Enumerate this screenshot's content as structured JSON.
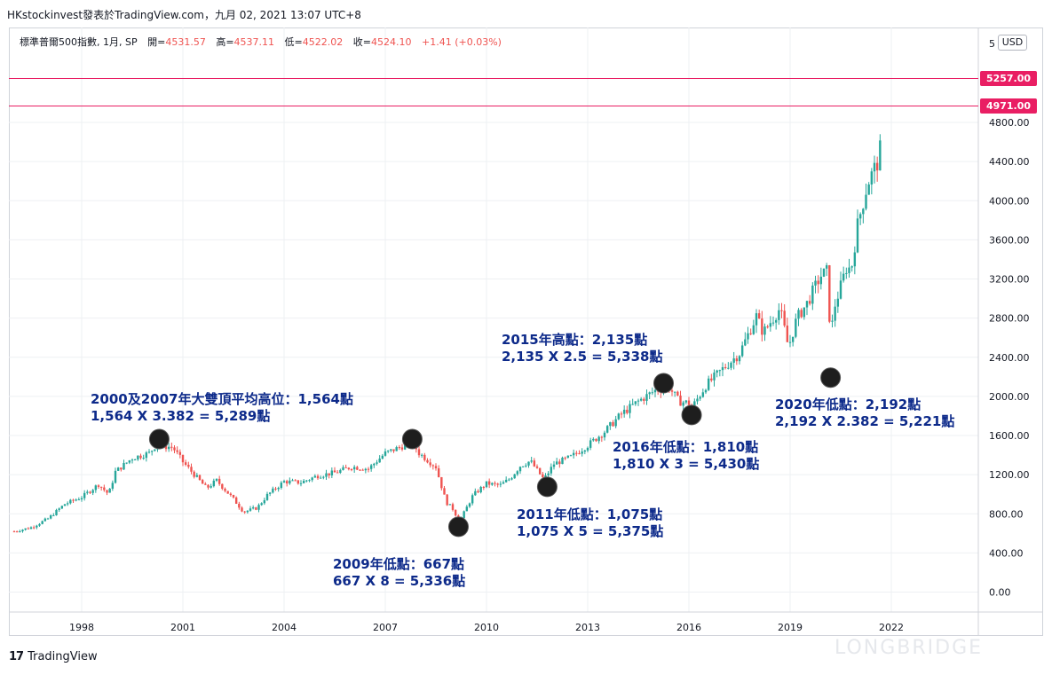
{
  "caption": "HKstockinvest發表於TradingView.com，九月 02, 2021 13:07 UTC+8",
  "legend": {
    "symbol": "標準普爾500指數, 1月, SP",
    "open_label": "開=",
    "open": "4531.57",
    "high_label": "高=",
    "high": "4537.11",
    "low_label": "低=",
    "low": "4522.02",
    "close_label": "收=",
    "close": "4524.10",
    "change": "+1.41 (+0.03%)"
  },
  "currency": "USD",
  "price_tags": [
    {
      "label": "5257.00",
      "value": 5257
    },
    {
      "label": "4971.00",
      "value": 4971
    }
  ],
  "footer": {
    "logo_mark": "17",
    "logo_text": "TradingView",
    "watermark": "LONGBRIDGE"
  },
  "annotations": [
    {
      "line1": "2000及2007年大雙頂平均高位：1,564點",
      "line2": "1,564 X 3.382 = 5,289點"
    },
    {
      "line1": "2009年低點：667點",
      "line2": "667 X 8 = 5,336點"
    },
    {
      "line1": "2011年低點：1,075點",
      "line2": "1,075 X 5 = 5,375點"
    },
    {
      "line1": "2015年高點：2,135點",
      "line2": "2,135 X 2.5 = 5,338點"
    },
    {
      "line1": "2016年低點：1,810點",
      "line2": "1,810 X 3 = 5,430點"
    },
    {
      "line1": "2020年低點：2,192點",
      "line2": "2,192 X 2.382 = 5,221點"
    }
  ],
  "colors": {
    "up": "#26a69a",
    "down": "#ef5350",
    "level": "#e91e63",
    "annotation": "#0d2a8a",
    "marker": "#1e1e1e"
  },
  "chart_data": {
    "type": "candlestick",
    "title": "標準普爾500指數, 1月, SP",
    "y_ticks": [
      "0.00",
      "400.00",
      "800.00",
      "1200.00",
      "1600.00",
      "2000.00",
      "2400.00",
      "2800.00",
      "3200.00",
      "3600.00",
      "4000.00",
      "4400.00",
      "4800.00"
    ],
    "x_ticks": [
      "1998",
      "2001",
      "2004",
      "2007",
      "2010",
      "2013",
      "2016",
      "2019",
      "2022"
    ],
    "ylim": [
      -200,
      5600
    ],
    "xlim": [
      1995.9,
      2024.5
    ],
    "horizontal_levels": [
      5257,
      4971
    ],
    "anchors": [
      [
        1996.0,
        620
      ],
      [
        1996.5,
        660
      ],
      [
        1997.0,
        750
      ],
      [
        1997.5,
        900
      ],
      [
        1998.0,
        970
      ],
      [
        1998.5,
        1100
      ],
      [
        1998.8,
        1000
      ],
      [
        1999.0,
        1230
      ],
      [
        1999.5,
        1370
      ],
      [
        2000.0,
        1420
      ],
      [
        2000.2,
        1500
      ],
      [
        2000.7,
        1480
      ],
      [
        2001.0,
        1330
      ],
      [
        2001.7,
        1060
      ],
      [
        2002.0,
        1140
      ],
      [
        2002.5,
        950
      ],
      [
        2002.8,
        820
      ],
      [
        2003.2,
        860
      ],
      [
        2003.5,
        990
      ],
      [
        2004.0,
        1130
      ],
      [
        2004.5,
        1120
      ],
      [
        2005.0,
        1190
      ],
      [
        2005.5,
        1220
      ],
      [
        2006.0,
        1280
      ],
      [
        2006.5,
        1260
      ],
      [
        2007.0,
        1420
      ],
      [
        2007.5,
        1490
      ],
      [
        2007.8,
        1530
      ],
      [
        2008.0,
        1420
      ],
      [
        2008.5,
        1280
      ],
      [
        2008.8,
        920
      ],
      [
        2009.0,
        850
      ],
      [
        2009.2,
        720
      ],
      [
        2009.6,
        990
      ],
      [
        2010.0,
        1110
      ],
      [
        2010.4,
        1090
      ],
      [
        2010.7,
        1160
      ],
      [
        2011.0,
        1290
      ],
      [
        2011.3,
        1340
      ],
      [
        2011.7,
        1150
      ],
      [
        2012.0,
        1310
      ],
      [
        2012.5,
        1380
      ],
      [
        2013.0,
        1500
      ],
      [
        2013.5,
        1640
      ],
      [
        2014.0,
        1820
      ],
      [
        2014.5,
        1950
      ],
      [
        2015.0,
        2060
      ],
      [
        2015.4,
        2100
      ],
      [
        2015.7,
        1950
      ],
      [
        2016.0,
        1930
      ],
      [
        2016.1,
        1890
      ],
      [
        2016.5,
        2110
      ],
      [
        2017.0,
        2280
      ],
      [
        2017.5,
        2440
      ],
      [
        2018.0,
        2820
      ],
      [
        2018.2,
        2650
      ],
      [
        2018.7,
        2900
      ],
      [
        2018.95,
        2500
      ],
      [
        2019.2,
        2800
      ],
      [
        2019.5,
        2950
      ],
      [
        2019.9,
        3230
      ],
      [
        2020.1,
        3280
      ],
      [
        2020.2,
        2580
      ],
      [
        2020.3,
        2900
      ],
      [
        2020.7,
        3350
      ],
      [
        2020.8,
        3270
      ],
      [
        2021.0,
        3750
      ],
      [
        2021.3,
        4180
      ],
      [
        2021.6,
        4400
      ],
      [
        2021.67,
        4524
      ]
    ],
    "markers": [
      {
        "x": 2000.3,
        "y": 1564
      },
      {
        "x": 2007.8,
        "y": 1564
      },
      {
        "x": 2009.17,
        "y": 667
      },
      {
        "x": 2011.8,
        "y": 1075
      },
      {
        "x": 2015.25,
        "y": 2135
      },
      {
        "x": 2016.08,
        "y": 1810
      },
      {
        "x": 2020.2,
        "y": 2192
      }
    ]
  }
}
